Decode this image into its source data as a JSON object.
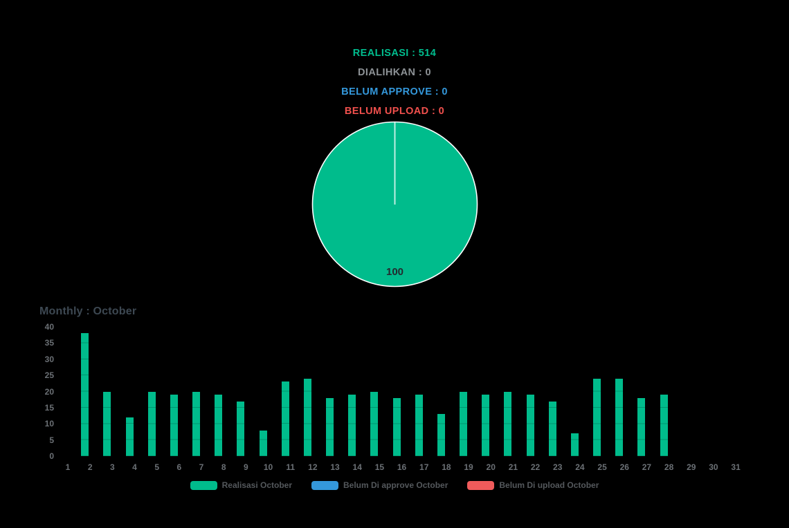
{
  "window": {
    "background": "#000000"
  },
  "summary": {
    "lines": [
      {
        "name": "realisasi",
        "label": "REALISASI",
        "value": "514",
        "text": "REALISASI : 514",
        "color": "#00bd8e"
      },
      {
        "name": "dialihkan",
        "label": "DIALIHKAN",
        "value": "0",
        "text": "DIALIHKAN : 0",
        "color": "#8d9296"
      },
      {
        "name": "belum-approve",
        "label": "BELUM APPROVE",
        "value": "0",
        "text": "BELUM APPROVE : 0",
        "color": "#3498db"
      },
      {
        "name": "belum-upload",
        "label": "BELUM UPLOAD",
        "value": "0",
        "text": "BELUM UPLOAD : 0",
        "color": "#f0504d"
      }
    ]
  },
  "chart_data": [
    {
      "type": "pie",
      "name": "realisasi-pie",
      "slices": [
        {
          "label": "Realisasi",
          "value": 100,
          "display_label": "100",
          "color": "#00bc8c"
        }
      ],
      "border_color": "#ffffff",
      "label_color": "#24292e",
      "legend_position": "none"
    },
    {
      "type": "bar",
      "name": "monthly-bars",
      "title": "Monthly : October",
      "title_color": "#3d4852",
      "categories": [
        1,
        2,
        3,
        4,
        5,
        6,
        7,
        8,
        9,
        10,
        11,
        12,
        13,
        14,
        15,
        16,
        17,
        18,
        19,
        20,
        21,
        22,
        23,
        24,
        25,
        26,
        27,
        28,
        29,
        30,
        31
      ],
      "series": [
        {
          "name": "Realisasi October",
          "color": "#00bc8c",
          "values": [
            0,
            38,
            20,
            12,
            20,
            19,
            20,
            19,
            17,
            8,
            23,
            24,
            18,
            19,
            20,
            18,
            19,
            13,
            20,
            19,
            20,
            19,
            17,
            7,
            24,
            24,
            18,
            19,
            0,
            0,
            0
          ]
        },
        {
          "name": "Belum Di approve October",
          "color": "#3498db",
          "values": [
            0,
            0,
            0,
            0,
            0,
            0,
            0,
            0,
            0,
            0,
            0,
            0,
            0,
            0,
            0,
            0,
            0,
            0,
            0,
            0,
            0,
            0,
            0,
            0,
            0,
            0,
            0,
            0,
            0,
            0,
            0
          ]
        },
        {
          "name": "Belum Di upload October",
          "color": "#f05b5b",
          "values": [
            0,
            0,
            0,
            0,
            0,
            0,
            0,
            0,
            0,
            0,
            0,
            0,
            0,
            0,
            0,
            0,
            0,
            0,
            0,
            0,
            0,
            0,
            0,
            0,
            0,
            0,
            0,
            0,
            0,
            0,
            0
          ]
        }
      ],
      "total": 514,
      "xlabel": "",
      "ylabel": "",
      "ylim": [
        0,
        40
      ],
      "yticks": [
        0,
        5,
        10,
        15,
        20,
        25,
        30,
        35,
        40
      ],
      "grid": "subtle",
      "axis_label_color": "#6b7075",
      "legend_position": "bottom",
      "legend_text_color": "#54585c"
    }
  ]
}
